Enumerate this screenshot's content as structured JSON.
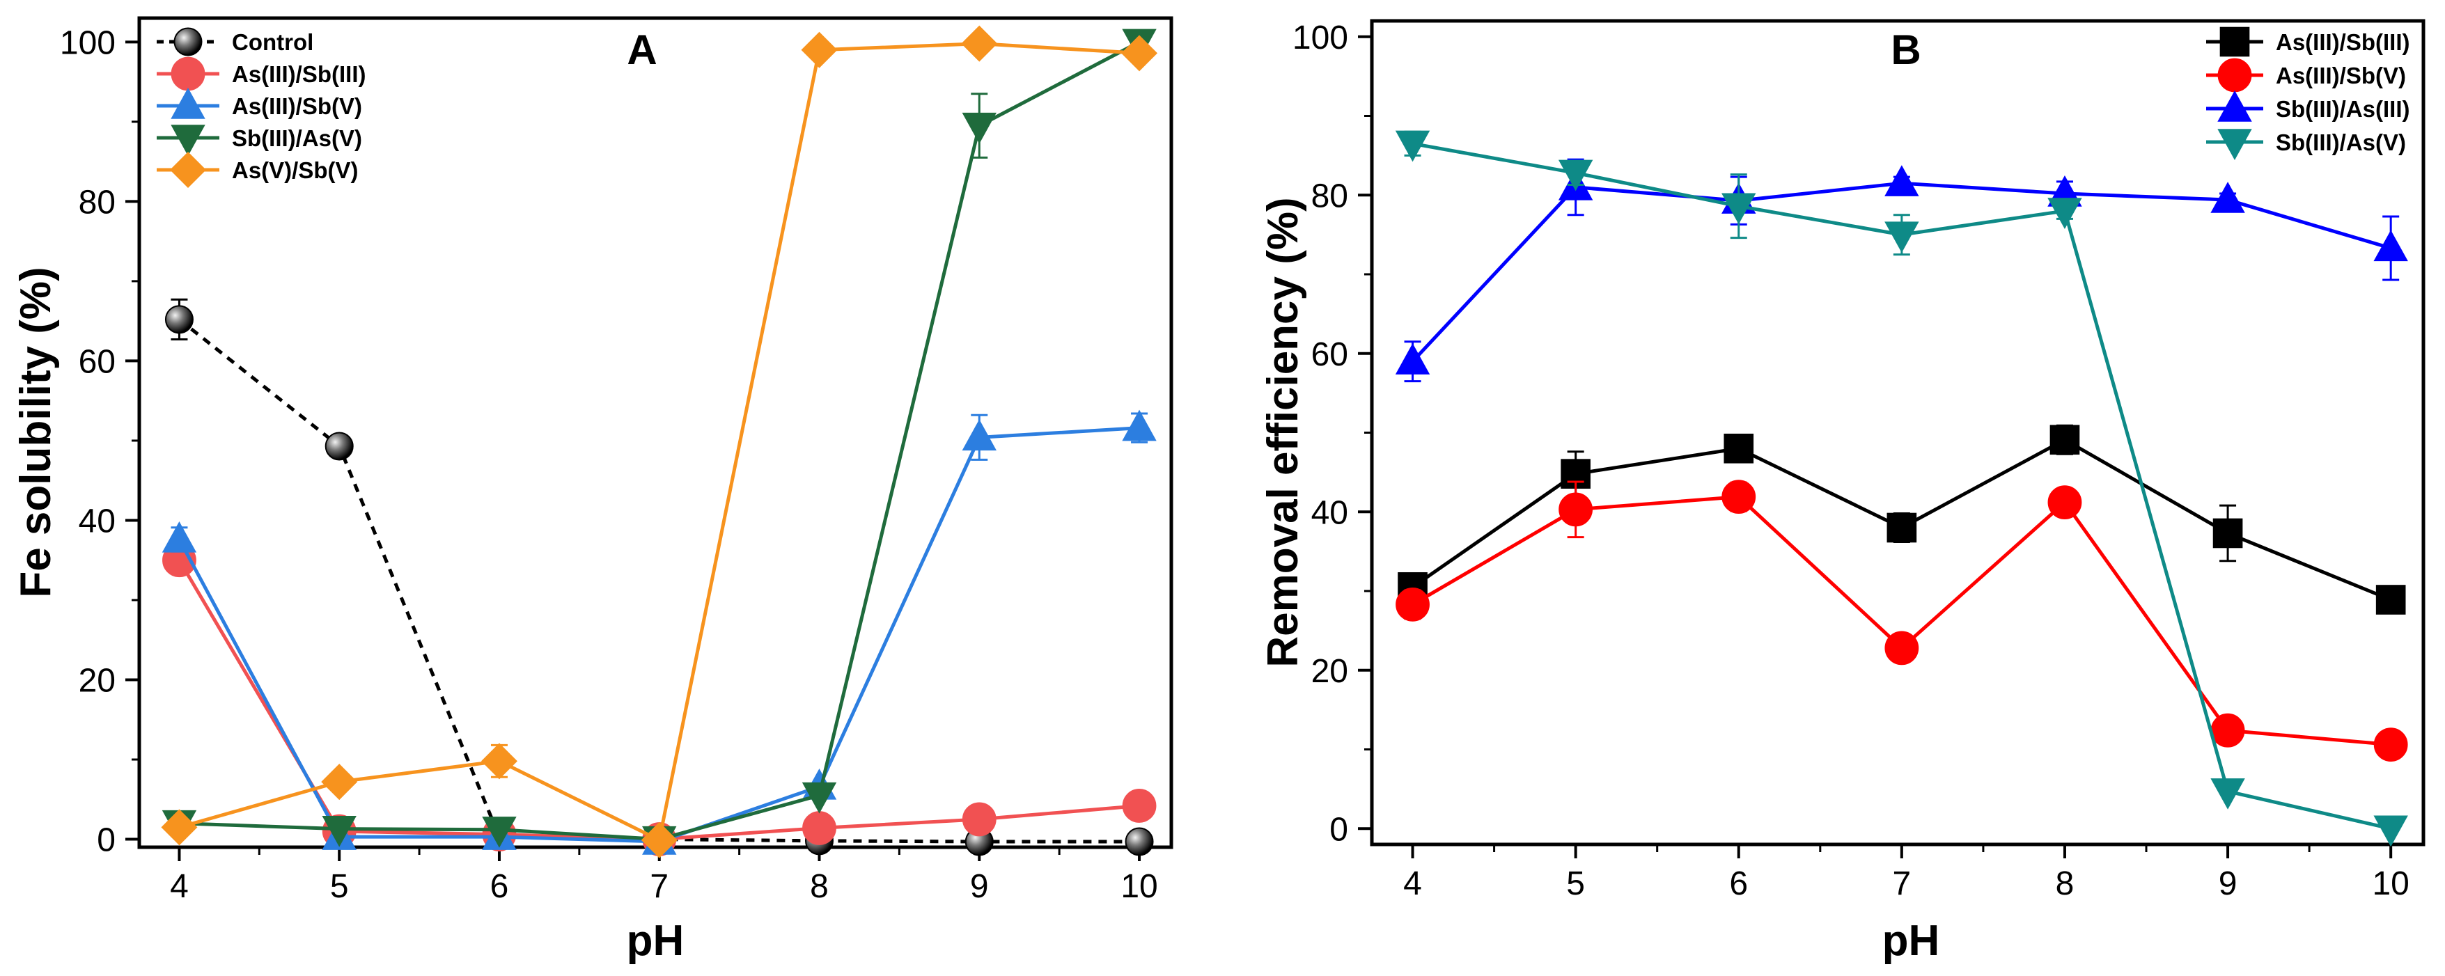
{
  "chart_data": [
    {
      "type": "line",
      "panel_label": "A",
      "title": "",
      "xlabel": "pH",
      "ylabel": "Fe solubility (%)",
      "xlim": [
        3.75,
        10.2
      ],
      "ylim": [
        -1,
        103
      ],
      "xticks": [
        4,
        5,
        6,
        7,
        8,
        9,
        10
      ],
      "yticks": [
        0,
        20,
        40,
        60,
        80,
        100
      ],
      "grid": false,
      "legend_position": "top-left",
      "x": [
        4,
        5,
        6,
        7,
        8,
        9,
        10
      ],
      "series": [
        {
          "name": "Control",
          "color": "#000000",
          "marker": "sphere",
          "dashed": true,
          "values": [
            65.2,
            49.3,
            0.3,
            0.0,
            -0.2,
            -0.3,
            -0.3
          ],
          "errors": [
            2.5,
            1.0,
            0,
            0,
            0,
            0,
            0
          ]
        },
        {
          "name": "As(III)/Sb(III)",
          "color": "#f15152",
          "marker": "circle",
          "dashed": false,
          "values": [
            35.0,
            1.0,
            0.6,
            0.0,
            1.4,
            2.5,
            4.2
          ],
          "errors": [
            1.0,
            0,
            0,
            0,
            0,
            0,
            0
          ]
        },
        {
          "name": "As(III)/Sb(V)",
          "color": "#2c7ee0",
          "marker": "triangle-up",
          "dashed": false,
          "values": [
            37.6,
            0.3,
            0.3,
            -0.3,
            6.6,
            50.4,
            51.6
          ],
          "errors": [
            1.5,
            0,
            0,
            0,
            0,
            2.8,
            1.8
          ]
        },
        {
          "name": "Sb(III)/As(V)",
          "color": "#1f6b3c",
          "marker": "triangle-down",
          "dashed": false,
          "values": [
            2.0,
            1.3,
            1.2,
            0.0,
            5.5,
            89.5,
            100.0
          ],
          "errors": [
            0,
            0,
            0,
            0,
            0,
            4.0,
            0
          ]
        },
        {
          "name": "As(V)/Sb(V)",
          "color": "#f7931e",
          "marker": "diamond",
          "dashed": false,
          "values": [
            1.5,
            7.2,
            9.8,
            -0.1,
            99.0,
            99.8,
            98.6
          ],
          "errors": [
            0,
            0,
            2.0,
            0,
            0,
            0,
            0
          ]
        }
      ]
    },
    {
      "type": "line",
      "panel_label": "B",
      "title": "",
      "xlabel": "pH",
      "ylabel": "Removal efficiency (%)",
      "xlim": [
        3.75,
        10.2
      ],
      "ylim": [
        -2,
        102
      ],
      "xticks": [
        4,
        5,
        6,
        7,
        8,
        9,
        10
      ],
      "yticks": [
        0,
        20,
        40,
        60,
        80,
        100
      ],
      "grid": false,
      "legend_position": "top-right",
      "x": [
        4,
        5,
        6,
        7,
        8,
        9,
        10
      ],
      "series": [
        {
          "name": "As(III)/Sb(III)",
          "color": "#000000",
          "marker": "square",
          "dashed": false,
          "values": [
            30.5,
            44.8,
            48.0,
            38.0,
            49.1,
            37.3,
            28.9
          ],
          "errors": [
            1.5,
            2.8,
            0.8,
            1.8,
            1.8,
            3.5,
            1.5
          ]
        },
        {
          "name": "As(III)/Sb(V)",
          "color": "#ff0000",
          "marker": "circle",
          "dashed": false,
          "values": [
            28.3,
            40.3,
            41.9,
            22.8,
            41.2,
            12.4,
            10.6
          ],
          "errors": [
            1.8,
            3.5,
            1.8,
            0.8,
            0.8,
            0.8,
            0.5
          ]
        },
        {
          "name": "Sb(III)/As(III)",
          "color": "#0000ff",
          "marker": "triangle-up",
          "dashed": false,
          "values": [
            59.0,
            81.0,
            79.3,
            81.5,
            80.2,
            79.4,
            73.3
          ],
          "errors": [
            2.5,
            3.5,
            3.0,
            0.8,
            1.5,
            0.8,
            4.0
          ]
        },
        {
          "name": "Sb(III)/As(V)",
          "color": "#0e8a87",
          "marker": "triangle-down",
          "dashed": false,
          "values": [
            86.5,
            82.8,
            78.6,
            75.0,
            78.0,
            4.7,
            0.0
          ],
          "errors": [
            1.5,
            1.5,
            4.0,
            2.5,
            1.0,
            0,
            0
          ]
        }
      ]
    }
  ]
}
